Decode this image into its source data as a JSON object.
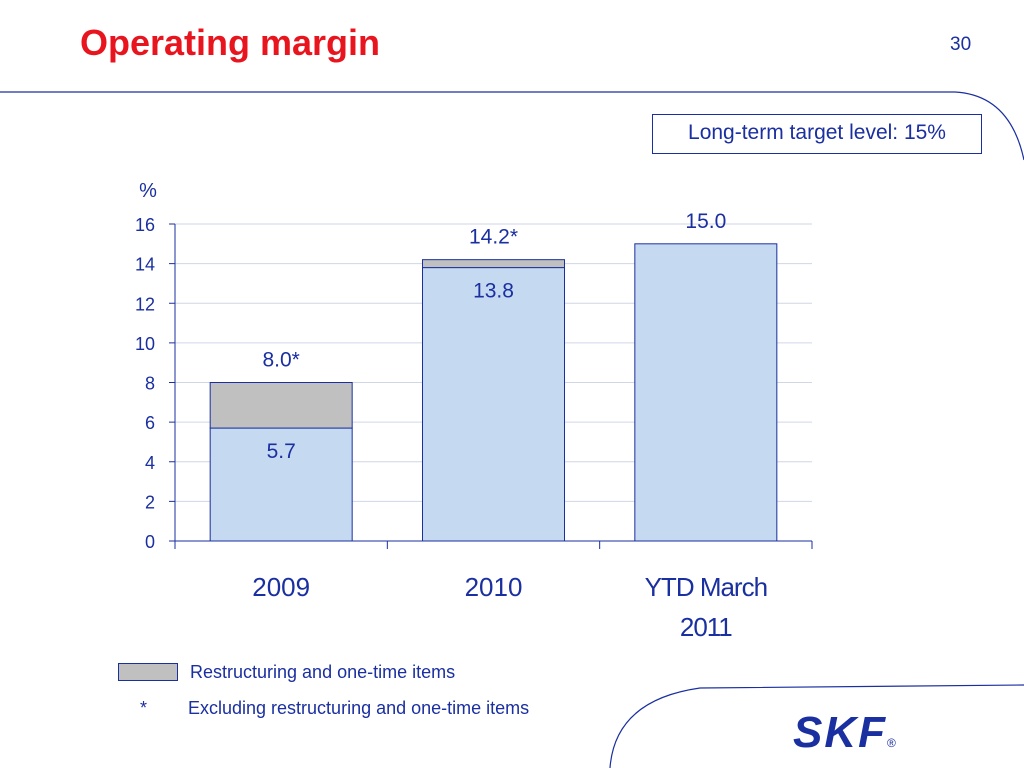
{
  "slide": {
    "title": "Operating margin",
    "page_number": "30",
    "target_note": "Long-term target level: 15%",
    "legend_label": "Restructuring and one-time items",
    "footnote_star": "*",
    "footnote_text": "Excluding restructuring and one-time items",
    "logo_text": "SKF",
    "logo_mark": "®"
  },
  "colors": {
    "title": "#e8151f",
    "text": "#1a2fa0",
    "bar_fill": "#c5d9f1",
    "restructuring_fill": "#c0c0c0",
    "gridline": "#cfd6e6"
  },
  "chart_data": {
    "type": "bar",
    "stacked": true,
    "ylabel": "%",
    "ylim": [
      0,
      16
    ],
    "yticks": [
      0,
      2,
      4,
      6,
      8,
      10,
      12,
      14,
      16
    ],
    "grid": true,
    "categories": [
      {
        "lines": [
          "2009"
        ]
      },
      {
        "lines": [
          "2010"
        ]
      },
      {
        "lines": [
          "YTD March",
          "2011"
        ]
      }
    ],
    "series": [
      {
        "values": [
          5.7,
          13.8,
          15.0
        ]
      },
      {
        "name": "Restructuring and one-time items",
        "values": [
          2.3,
          0.4,
          0
        ]
      }
    ],
    "base_labels": [
      "5.7",
      "13.8",
      ""
    ],
    "total_labels": [
      "8.0*",
      "14.2*",
      "15.0"
    ]
  }
}
